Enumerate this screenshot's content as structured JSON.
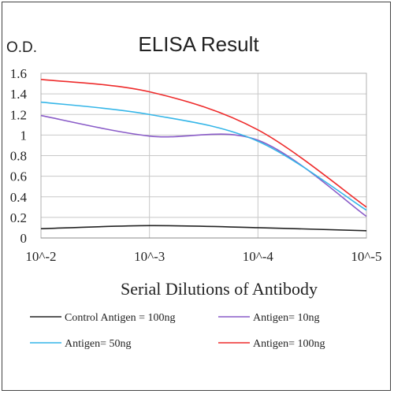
{
  "chart_data": {
    "type": "line",
    "title": "ELISA Result",
    "ylabel": "O.D.",
    "xlabel": "Serial Dilutions  of Antibody",
    "x": [
      "10^-2",
      "10^-3",
      "10^-4",
      "10^-5"
    ],
    "ylim": [
      0,
      1.6
    ],
    "yticks": [
      "0",
      "0.2",
      "0.4",
      "0.6",
      "0.8",
      "1",
      "1.2",
      "1.4",
      "1.6"
    ],
    "grid": true,
    "legend_position": "bottom",
    "series": [
      {
        "name": "Control Antigen = 100ng",
        "color": "#222222",
        "values": [
          0.09,
          0.12,
          0.1,
          0.07
        ]
      },
      {
        "name": "Antigen= 10ng",
        "color": "#8a5cc8",
        "values": [
          1.19,
          0.99,
          0.95,
          0.21
        ]
      },
      {
        "name": "Antigen= 50ng",
        "color": "#35b6e8",
        "values": [
          1.32,
          1.2,
          0.94,
          0.27
        ]
      },
      {
        "name": "Antigen= 100ng",
        "color": "#ee2b2b",
        "values": [
          1.54,
          1.42,
          1.05,
          0.3
        ]
      }
    ]
  }
}
